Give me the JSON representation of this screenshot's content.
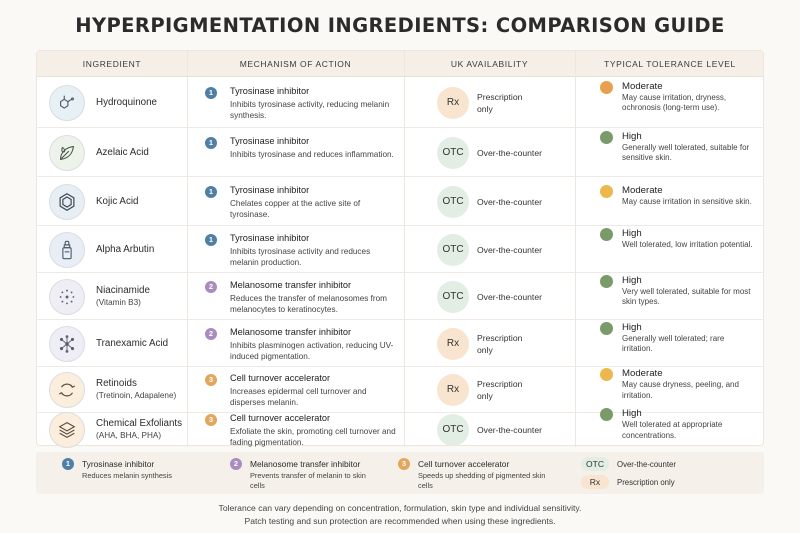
{
  "title": "HYPERPIGMENTATION INGREDIENTS: COMPARISON GUIDE",
  "headers": {
    "ingredient": "INGREDIENT",
    "mechanism": "MECHANISM OF ACTION",
    "availability": "UK AVAILABILITY",
    "tolerance": "TYPICAL TOLERANCE LEVEL"
  },
  "colors": {
    "mech1": "#4f7fa6",
    "mech2": "#a98bc0",
    "mech3": "#e3a65c",
    "tol_moderate_orange": "#e8a04e",
    "tol_moderate_yellow": "#ecb84e",
    "tol_high": "#7a9a6a"
  },
  "rows": [
    {
      "name": "Hydroquinone",
      "sub": "",
      "icon": "molecule-icon",
      "mech_num": "1",
      "mech_title": "Tyrosinase inhibitor",
      "mech_desc": "Inhibits tyrosinase activity, reducing melanin synthesis.",
      "avail_badge": "Rx",
      "avail_text": "Prescription only",
      "tol_level": "Moderate",
      "tol_desc": "May cause irritation, dryness, ochronosis (long-term use)."
    },
    {
      "name": "Azelaic Acid",
      "sub": "",
      "icon": "leaf-icon",
      "mech_num": "1",
      "mech_title": "Tyrosinase inhibitor",
      "mech_desc": "Inhibits tyrosinase and reduces inflammation.",
      "avail_badge": "OTC",
      "avail_text": "Over-the-counter",
      "tol_level": "High",
      "tol_desc": "Generally well tolerated, suitable for sensitive skin."
    },
    {
      "name": "Kojic Acid",
      "sub": "",
      "icon": "hexagon-ring-icon",
      "mech_num": "1",
      "mech_title": "Tyrosinase inhibitor",
      "mech_desc": "Chelates copper at the active site of tyrosinase.",
      "avail_badge": "OTC",
      "avail_text": "Over-the-counter",
      "tol_level": "Moderate",
      "tol_desc": "May cause irritation in sensitive skin."
    },
    {
      "name": "Alpha Arbutin",
      "sub": "",
      "icon": "dropper-bottle-icon",
      "mech_num": "1",
      "mech_title": "Tyrosinase inhibitor",
      "mech_desc": "Inhibits tyrosinase activity and reduces melanin production.",
      "avail_badge": "OTC",
      "avail_text": "Over-the-counter",
      "tol_level": "High",
      "tol_desc": "Well tolerated, low irritation potential."
    },
    {
      "name": "Niacinamide",
      "sub": "(Vitamin B3)",
      "icon": "dots-network-icon",
      "mech_num": "2",
      "mech_title": "Melanosome transfer inhibitor",
      "mech_desc": "Reduces the transfer of melanosomes from melanocytes to keratinocytes.",
      "avail_badge": "OTC",
      "avail_text": "Over-the-counter",
      "tol_level": "High",
      "tol_desc": "Very well tolerated, suitable for most skin types."
    },
    {
      "name": "Tranexamic Acid",
      "sub": "",
      "icon": "molecule-network-icon",
      "mech_num": "2",
      "mech_title": "Melanosome transfer inhibitor",
      "mech_desc": "Inhibits plasminogen activation, reducing UV-induced pigmentation.",
      "avail_badge": "Rx",
      "avail_text": "Prescription only",
      "tol_level": "High",
      "tol_desc": "Generally well tolerated; rare irritation."
    },
    {
      "name": "Retinoids",
      "sub": "(Tretinoin, Adapalene)",
      "icon": "cycle-arrows-icon",
      "mech_num": "3",
      "mech_title": "Cell turnover accelerator",
      "mech_desc": "Increases epidermal cell turnover and disperses melanin.",
      "avail_badge": "Rx",
      "avail_text": "Prescription only",
      "tol_level": "Moderate",
      "tol_desc": "May cause dryness, peeling, and irritation."
    },
    {
      "name": "Chemical Exfoliants",
      "sub": "(AHA, BHA, PHA)",
      "icon": "layers-icon",
      "mech_num": "3",
      "mech_title": "Cell turnover accelerator",
      "mech_desc": "Exfoliate the skin, promoting cell turnover and fading pigmentation.",
      "avail_badge": "OTC",
      "avail_text": "Over-the-counter",
      "tol_level": "High",
      "tol_desc": "Well tolerated at appropriate concentrations."
    }
  ],
  "legend": [
    {
      "num": "1",
      "title": "Tyrosinase inhibitor",
      "desc": "Reduces melanin synthesis"
    },
    {
      "num": "2",
      "title": "Melanosome transfer inhibitor",
      "desc": "Prevents transfer of melanin to skin cells"
    },
    {
      "num": "3",
      "title": "Cell turnover accelerator",
      "desc": "Speeds up shedding of pigmented skin cells"
    }
  ],
  "legend_avail": [
    {
      "badge": "OTC",
      "text": "Over-the-counter"
    },
    {
      "badge": "Rx",
      "text": "Prescription only"
    }
  ],
  "footer": {
    "line1": "Tolerance can vary depending on concentration, formulation, skin type and individual sensitivity.",
    "line2": "Patch testing and sun protection are recommended when using these ingredients."
  }
}
